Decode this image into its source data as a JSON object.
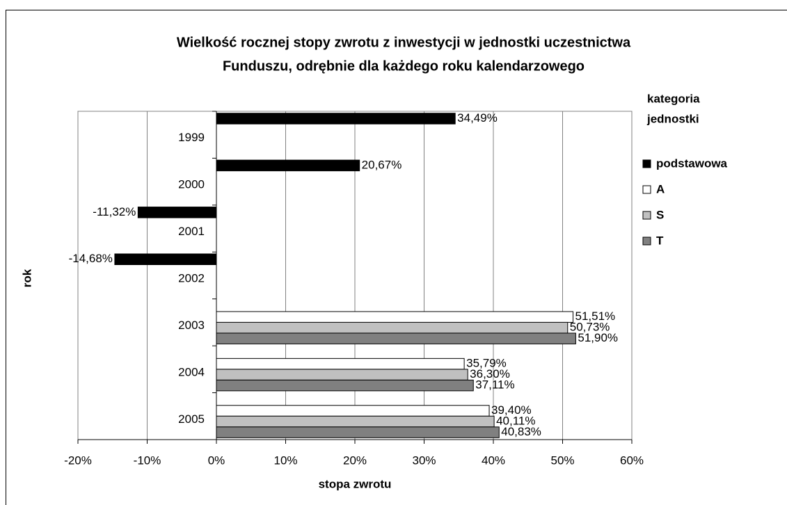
{
  "chart_data": {
    "type": "hbar",
    "title": [
      "Wielkość rocznej stopy zwrotu z inwestycji w jednostki uczestnictwa",
      "Funduszu, odrębnie dla każdego roku kalendarzowego"
    ],
    "x_label": "stopa zwrotu",
    "y_label": "rok",
    "legend_title": [
      "kategoria",
      "jednostki"
    ],
    "categories": [
      "1999",
      "2000",
      "2001",
      "2002",
      "2003",
      "2004",
      "2005"
    ],
    "series": [
      {
        "name": "podstawowa",
        "color": "#000000",
        "values": [
          34.49,
          20.67,
          -11.32,
          -14.68,
          null,
          null,
          null
        ],
        "value_labels": [
          "34,49%",
          "20,67%",
          "-11,32%",
          "-14,68%",
          null,
          null,
          null
        ]
      },
      {
        "name": "A",
        "color": "#ffffff",
        "values": [
          null,
          null,
          null,
          null,
          51.51,
          35.79,
          39.4
        ],
        "value_labels": [
          null,
          null,
          null,
          null,
          "51,51%",
          "35,79%",
          "39,40%"
        ]
      },
      {
        "name": "S",
        "color": "#c0c0c0",
        "values": [
          null,
          null,
          null,
          null,
          50.73,
          36.3,
          40.11
        ],
        "value_labels": [
          null,
          null,
          null,
          null,
          "50,73%",
          "36,30%",
          "40,11%"
        ]
      },
      {
        "name": "T",
        "color": "#808080",
        "values": [
          null,
          null,
          null,
          null,
          51.9,
          37.11,
          40.83
        ],
        "value_labels": [
          null,
          null,
          null,
          null,
          "51,90%",
          "37,11%",
          "40,83%"
        ]
      }
    ],
    "xlim": [
      -20,
      60
    ],
    "xticks": [
      {
        "value": -20,
        "label": "-20%"
      },
      {
        "value": -10,
        "label": "-10%"
      },
      {
        "value": 0,
        "label": "0%"
      },
      {
        "value": 10,
        "label": "10%"
      },
      {
        "value": 20,
        "label": "20%"
      },
      {
        "value": 30,
        "label": "30%"
      },
      {
        "value": 40,
        "label": "40%"
      },
      {
        "value": 50,
        "label": "50%"
      },
      {
        "value": 60,
        "label": "60%"
      }
    ],
    "grid": true,
    "legend": "right"
  }
}
